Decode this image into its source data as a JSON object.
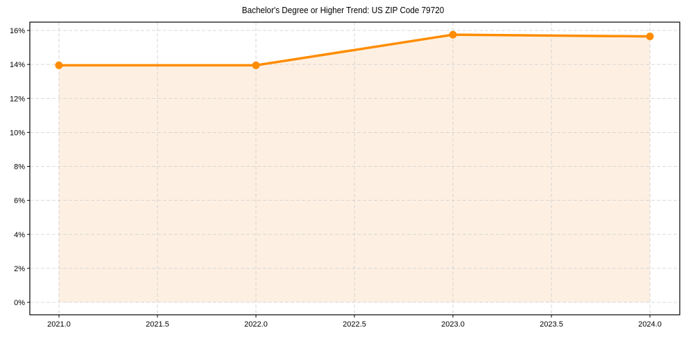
{
  "chart_data": {
    "type": "area",
    "title": "Bachelor's Degree or Higher Trend: US ZIP Code 79720",
    "xlabel": "",
    "ylabel": "",
    "x": [
      2021,
      2022,
      2023,
      2024
    ],
    "values": [
      13.95,
      13.95,
      15.75,
      15.65
    ],
    "series": [
      {
        "name": "Bachelor's Degree or Higher",
        "values": [
          13.95,
          13.95,
          15.75,
          15.65
        ],
        "color": "#ff8c00"
      }
    ],
    "xticks": [
      "2021.0",
      "2021.5",
      "2022.0",
      "2022.5",
      "2023.0",
      "2023.5",
      "2024.0"
    ],
    "yticks": [
      "0%",
      "2%",
      "4%",
      "6%",
      "8%",
      "10%",
      "12%",
      "14%",
      "16%"
    ],
    "xlim": [
      2020.85,
      2024.15
    ],
    "ylim": [
      -0.8,
      16.6
    ],
    "grid": true,
    "fill_color": "#fdf0e3"
  }
}
